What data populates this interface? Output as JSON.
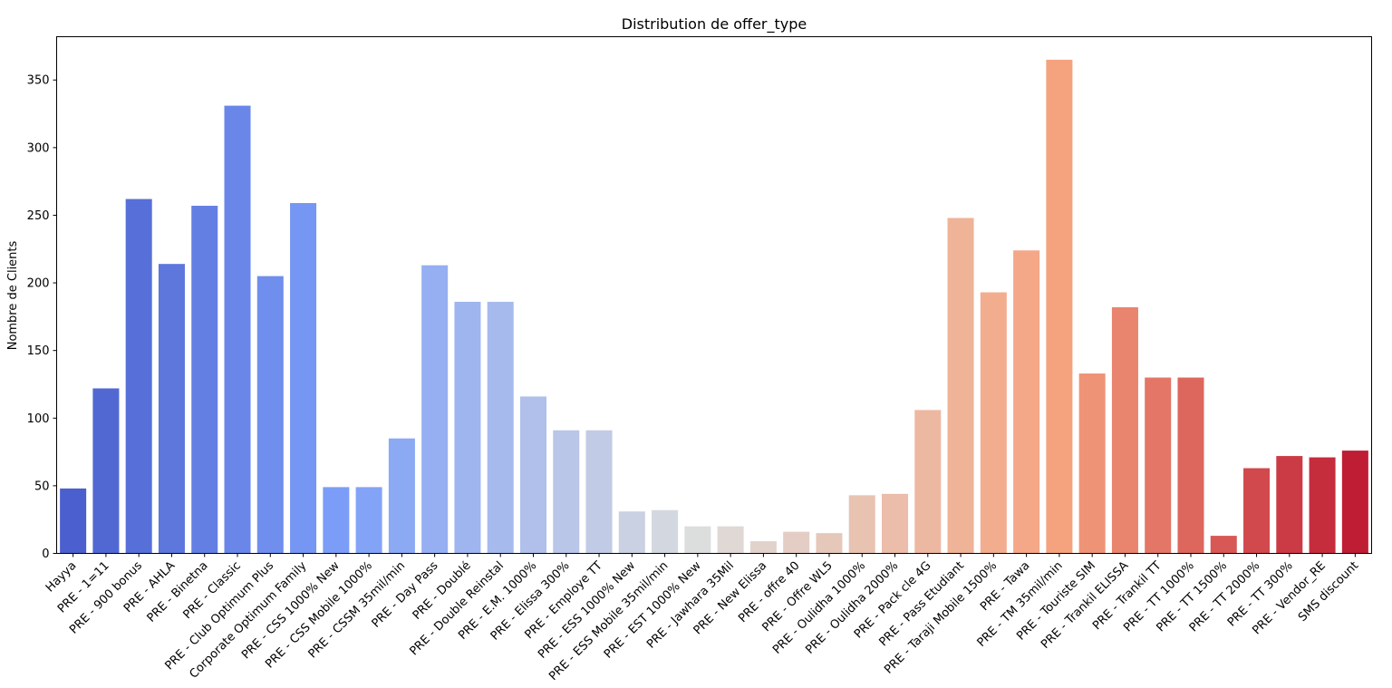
{
  "chart_data": {
    "type": "bar",
    "title": "Distribution de offer_type",
    "xlabel": "",
    "ylabel": "Nombre de Clients",
    "ylim": [
      0,
      382
    ],
    "yticks": [
      0,
      50,
      100,
      150,
      200,
      250,
      300,
      350
    ],
    "grid": false,
    "categories": [
      "Hayya",
      "PRE - 1=11",
      "PRE - 900 bonus",
      "PRE - AHLA",
      "PRE - Binetna",
      "PRE - Classic",
      "PRE - Club Optimum Plus",
      "Corporate Optimum Family",
      "PRE - CSS 1000% New",
      "PRE - CSS Mobile 1000%",
      "PRE - CSSM 35mil/min",
      "PRE - Day Pass",
      "PRE - Doublé",
      "PRE - Double Reinstal",
      "PRE - E.M. 1000%",
      "PRE - Elissa 300%",
      "PRE - Employe TT",
      "PRE - ESS 1000% New",
      "PRE - ESS Mobile 35mil/min",
      "PRE - EST 1000% New",
      "PRE - Jawhara 35Mil",
      "PRE - New Elissa",
      "PRE - offre 40",
      "PRE - Offre WL5",
      "PRE - Oulidha 1000%",
      "PRE - Oulidha 2000%",
      "PRE - Pack cle 4G",
      "PRE - Pass Etudiant",
      "PRE - Taraji Mobile 1500%",
      "PRE - Tawa",
      "PRE - TM 35mil/min",
      "PRE - Touriste SIM",
      "PRE - Trankil ELISSA",
      "PRE - Trankil TT",
      "PRE - TT 1000%",
      "PRE - TT 1500%",
      "PRE - TT 2000%",
      "PRE - TT 300%",
      "PRE - Vendor_RE",
      "SMS discount"
    ],
    "values": [
      48,
      122,
      262,
      214,
      257,
      331,
      205,
      259,
      49,
      49,
      85,
      213,
      186,
      186,
      116,
      91,
      91,
      31,
      32,
      20,
      20,
      9,
      16,
      15,
      43,
      44,
      106,
      248,
      193,
      224,
      365,
      133,
      182,
      130,
      130,
      13,
      63,
      72,
      71,
      76
    ]
  }
}
